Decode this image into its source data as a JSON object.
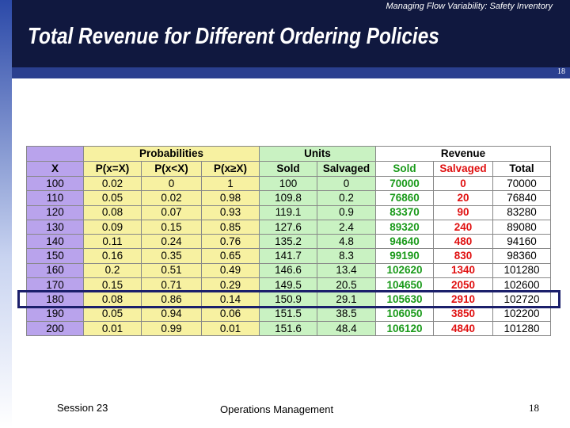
{
  "header": {
    "subtitle": "Managing Flow Variability:  Safety Inventory",
    "title": "Total Revenue for Different Ordering Policies",
    "page_number": "18"
  },
  "table": {
    "group_headers": [
      {
        "label": "",
        "span": 1
      },
      {
        "label": "Probabilities",
        "span": 3
      },
      {
        "label": "Units",
        "span": 2
      },
      {
        "label": "Revenue",
        "span": 3
      }
    ],
    "columns": [
      "X",
      "P(x=X)",
      "P(x<X)",
      "P(x≥X)",
      "Sold",
      "Salvaged",
      "Sold",
      "Salvaged",
      "Total"
    ],
    "rows": [
      [
        "100",
        "0.02",
        "0",
        "1",
        "100",
        "0",
        "70000",
        "0",
        "70000"
      ],
      [
        "110",
        "0.05",
        "0.02",
        "0.98",
        "109.8",
        "0.2",
        "76860",
        "20",
        "76840"
      ],
      [
        "120",
        "0.08",
        "0.07",
        "0.93",
        "119.1",
        "0.9",
        "83370",
        "90",
        "83280"
      ],
      [
        "130",
        "0.09",
        "0.15",
        "0.85",
        "127.6",
        "2.4",
        "89320",
        "240",
        "89080"
      ],
      [
        "140",
        "0.11",
        "0.24",
        "0.76",
        "135.2",
        "4.8",
        "94640",
        "480",
        "94160"
      ],
      [
        "150",
        "0.16",
        "0.35",
        "0.65",
        "141.7",
        "8.3",
        "99190",
        "830",
        "98360"
      ],
      [
        "160",
        "0.2",
        "0.51",
        "0.49",
        "146.6",
        "13.4",
        "102620",
        "1340",
        "101280"
      ],
      [
        "170",
        "0.15",
        "0.71",
        "0.29",
        "149.5",
        "20.5",
        "104650",
        "2050",
        "102600"
      ],
      [
        "180",
        "0.08",
        "0.86",
        "0.14",
        "150.9",
        "29.1",
        "105630",
        "2910",
        "102720"
      ],
      [
        "190",
        "0.05",
        "0.94",
        "0.06",
        "151.5",
        "38.5",
        "106050",
        "3850",
        "102200"
      ],
      [
        "200",
        "0.01",
        "0.99",
        "0.01",
        "151.6",
        "48.4",
        "106120",
        "4840",
        "101280"
      ]
    ],
    "highlighted_row": 8
  },
  "footer": {
    "session": "Session 23",
    "course": "Operations Management",
    "page_number": "18"
  }
}
